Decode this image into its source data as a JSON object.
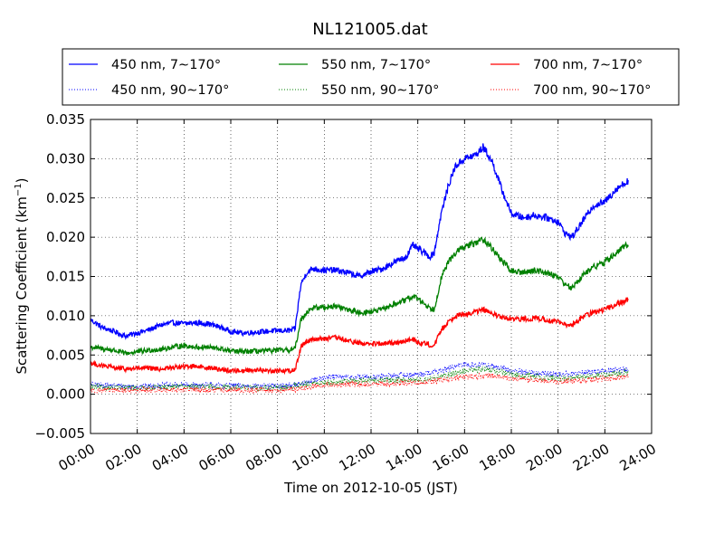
{
  "chart_data": {
    "type": "line",
    "title": "NL121005.dat",
    "xlabel": "Time on 2012-10-05 (JST)",
    "ylabel": "Scattering Coefficient (km",
    "ylabel_sup": "−1",
    "ylabel_close": ")",
    "xlim": [
      "00:00",
      "24:00"
    ],
    "ylim": [
      -0.005,
      0.035
    ],
    "x_ticks": [
      "00:00",
      "02:00",
      "04:00",
      "06:00",
      "08:00",
      "10:00",
      "12:00",
      "14:00",
      "16:00",
      "18:00",
      "20:00",
      "22:00",
      "24:00"
    ],
    "y_ticks": [
      "−0.005",
      "0.000",
      "0.005",
      "0.010",
      "0.015",
      "0.020",
      "0.025",
      "0.030",
      "0.035"
    ],
    "grid": true,
    "legend_position": "top",
    "series": [
      {
        "name": "450 nm, 7∼170°",
        "color": "#0000ff",
        "style": "solid",
        "x": [
          0,
          0.5,
          1,
          1.5,
          2,
          2.5,
          3,
          3.5,
          4,
          4.5,
          5,
          5.5,
          6,
          6.5,
          7,
          7.5,
          8,
          8.5,
          8.75,
          9,
          9.25,
          9.5,
          10,
          10.5,
          11,
          11.5,
          12,
          12.5,
          13,
          13.5,
          13.8,
          14,
          14.3,
          14.5,
          14.7,
          15,
          15.3,
          15.6,
          16,
          16.5,
          16.8,
          17.2,
          17.6,
          18,
          18.5,
          19,
          19.5,
          20,
          20.3,
          20.6,
          21,
          21.5,
          22,
          22.5,
          23
        ],
        "y": [
          0.0095,
          0.0085,
          0.008,
          0.0074,
          0.0078,
          0.0082,
          0.0088,
          0.0091,
          0.009,
          0.0091,
          0.009,
          0.0086,
          0.008,
          0.0078,
          0.0079,
          0.008,
          0.0081,
          0.0081,
          0.0083,
          0.014,
          0.0155,
          0.016,
          0.0158,
          0.0158,
          0.0155,
          0.015,
          0.0156,
          0.016,
          0.0168,
          0.0175,
          0.019,
          0.0185,
          0.018,
          0.0175,
          0.018,
          0.023,
          0.0265,
          0.029,
          0.03,
          0.0305,
          0.0315,
          0.0295,
          0.026,
          0.023,
          0.0225,
          0.0228,
          0.0225,
          0.022,
          0.0205,
          0.02,
          0.0218,
          0.024,
          0.0245,
          0.0262,
          0.0272
        ]
      },
      {
        "name": "450 nm, 90∼170°",
        "color": "#0000ff",
        "style": "dotted",
        "x": [
          0,
          2,
          4,
          6,
          8,
          9,
          10,
          12,
          14,
          15,
          16,
          17,
          18,
          20,
          21,
          22,
          23
        ],
        "y": [
          0.0012,
          0.001,
          0.0012,
          0.0011,
          0.001,
          0.0013,
          0.0022,
          0.0022,
          0.0025,
          0.003,
          0.0038,
          0.0037,
          0.003,
          0.0025,
          0.0027,
          0.003,
          0.0032
        ]
      },
      {
        "name": "550 nm, 7∼170°",
        "color": "#008000",
        "style": "solid",
        "x": [
          0,
          0.5,
          1,
          1.5,
          2,
          2.5,
          3,
          3.5,
          4,
          4.5,
          5,
          5.5,
          6,
          6.5,
          7,
          7.5,
          8,
          8.5,
          8.75,
          9,
          9.25,
          9.5,
          10,
          10.5,
          11,
          11.5,
          12,
          12.5,
          13,
          13.5,
          13.8,
          14,
          14.3,
          14.5,
          14.7,
          15,
          15.3,
          15.6,
          16,
          16.5,
          16.8,
          17.2,
          17.6,
          18,
          18.5,
          19,
          19.5,
          20,
          20.3,
          20.6,
          21,
          21.5,
          22,
          22.5,
          23
        ],
        "y": [
          0.006,
          0.0058,
          0.0056,
          0.0052,
          0.0054,
          0.0056,
          0.0057,
          0.006,
          0.0062,
          0.006,
          0.006,
          0.0058,
          0.0055,
          0.0054,
          0.0055,
          0.0055,
          0.0056,
          0.0056,
          0.0058,
          0.0095,
          0.0105,
          0.011,
          0.0111,
          0.0112,
          0.0108,
          0.0104,
          0.0105,
          0.0108,
          0.0115,
          0.012,
          0.0125,
          0.0122,
          0.0115,
          0.011,
          0.0108,
          0.0148,
          0.0168,
          0.018,
          0.0188,
          0.0193,
          0.0198,
          0.0185,
          0.017,
          0.0157,
          0.0155,
          0.0158,
          0.0155,
          0.015,
          0.014,
          0.0135,
          0.015,
          0.0162,
          0.0168,
          0.018,
          0.0192
        ]
      },
      {
        "name": "550 nm, 90∼170°",
        "color": "#008000",
        "style": "dotted",
        "x": [
          0,
          2,
          4,
          6,
          8,
          9,
          10,
          12,
          14,
          15,
          16,
          17,
          18,
          20,
          21,
          22,
          23
        ],
        "y": [
          0.0009,
          0.0008,
          0.001,
          0.0009,
          0.0008,
          0.0011,
          0.0015,
          0.0018,
          0.0018,
          0.0022,
          0.003,
          0.0032,
          0.0025,
          0.002,
          0.0022,
          0.0025,
          0.0028
        ]
      },
      {
        "name": "700 nm, 7∼170°",
        "color": "#ff0000",
        "style": "solid",
        "x": [
          0,
          0.5,
          1,
          1.5,
          2,
          2.5,
          3,
          3.5,
          4,
          4.5,
          5,
          5.5,
          6,
          6.5,
          7,
          7.5,
          8,
          8.5,
          8.75,
          9,
          9.25,
          9.5,
          10,
          10.5,
          11,
          11.5,
          12,
          12.5,
          13,
          13.5,
          13.8,
          14,
          14.3,
          14.5,
          14.7,
          15,
          15.3,
          15.6,
          16,
          16.5,
          16.8,
          17.2,
          17.6,
          18,
          18.5,
          19,
          19.5,
          20,
          20.3,
          20.6,
          21,
          21.5,
          22,
          22.5,
          23
        ],
        "y": [
          0.004,
          0.0036,
          0.0034,
          0.0032,
          0.0033,
          0.0033,
          0.0032,
          0.0034,
          0.0035,
          0.0036,
          0.0034,
          0.0032,
          0.003,
          0.003,
          0.0031,
          0.003,
          0.003,
          0.003,
          0.0031,
          0.006,
          0.0068,
          0.007,
          0.0071,
          0.0072,
          0.0068,
          0.0065,
          0.0064,
          0.0064,
          0.0066,
          0.0068,
          0.007,
          0.0066,
          0.0065,
          0.0063,
          0.0062,
          0.0082,
          0.0092,
          0.01,
          0.0102,
          0.0105,
          0.0108,
          0.0102,
          0.0098,
          0.0095,
          0.0096,
          0.0097,
          0.0095,
          0.0092,
          0.0088,
          0.0088,
          0.0098,
          0.0104,
          0.0108,
          0.0115,
          0.012
        ]
      },
      {
        "name": "700 nm, 90∼170°",
        "color": "#ff0000",
        "style": "dotted",
        "x": [
          0,
          2,
          4,
          6,
          8,
          9,
          10,
          12,
          14,
          15,
          16,
          17,
          18,
          20,
          21,
          22,
          23
        ],
        "y": [
          0.0005,
          0.0005,
          0.0006,
          0.0005,
          0.0005,
          0.0007,
          0.0012,
          0.0013,
          0.0015,
          0.0018,
          0.0022,
          0.0024,
          0.002,
          0.0016,
          0.0018,
          0.002,
          0.0022
        ]
      }
    ]
  }
}
